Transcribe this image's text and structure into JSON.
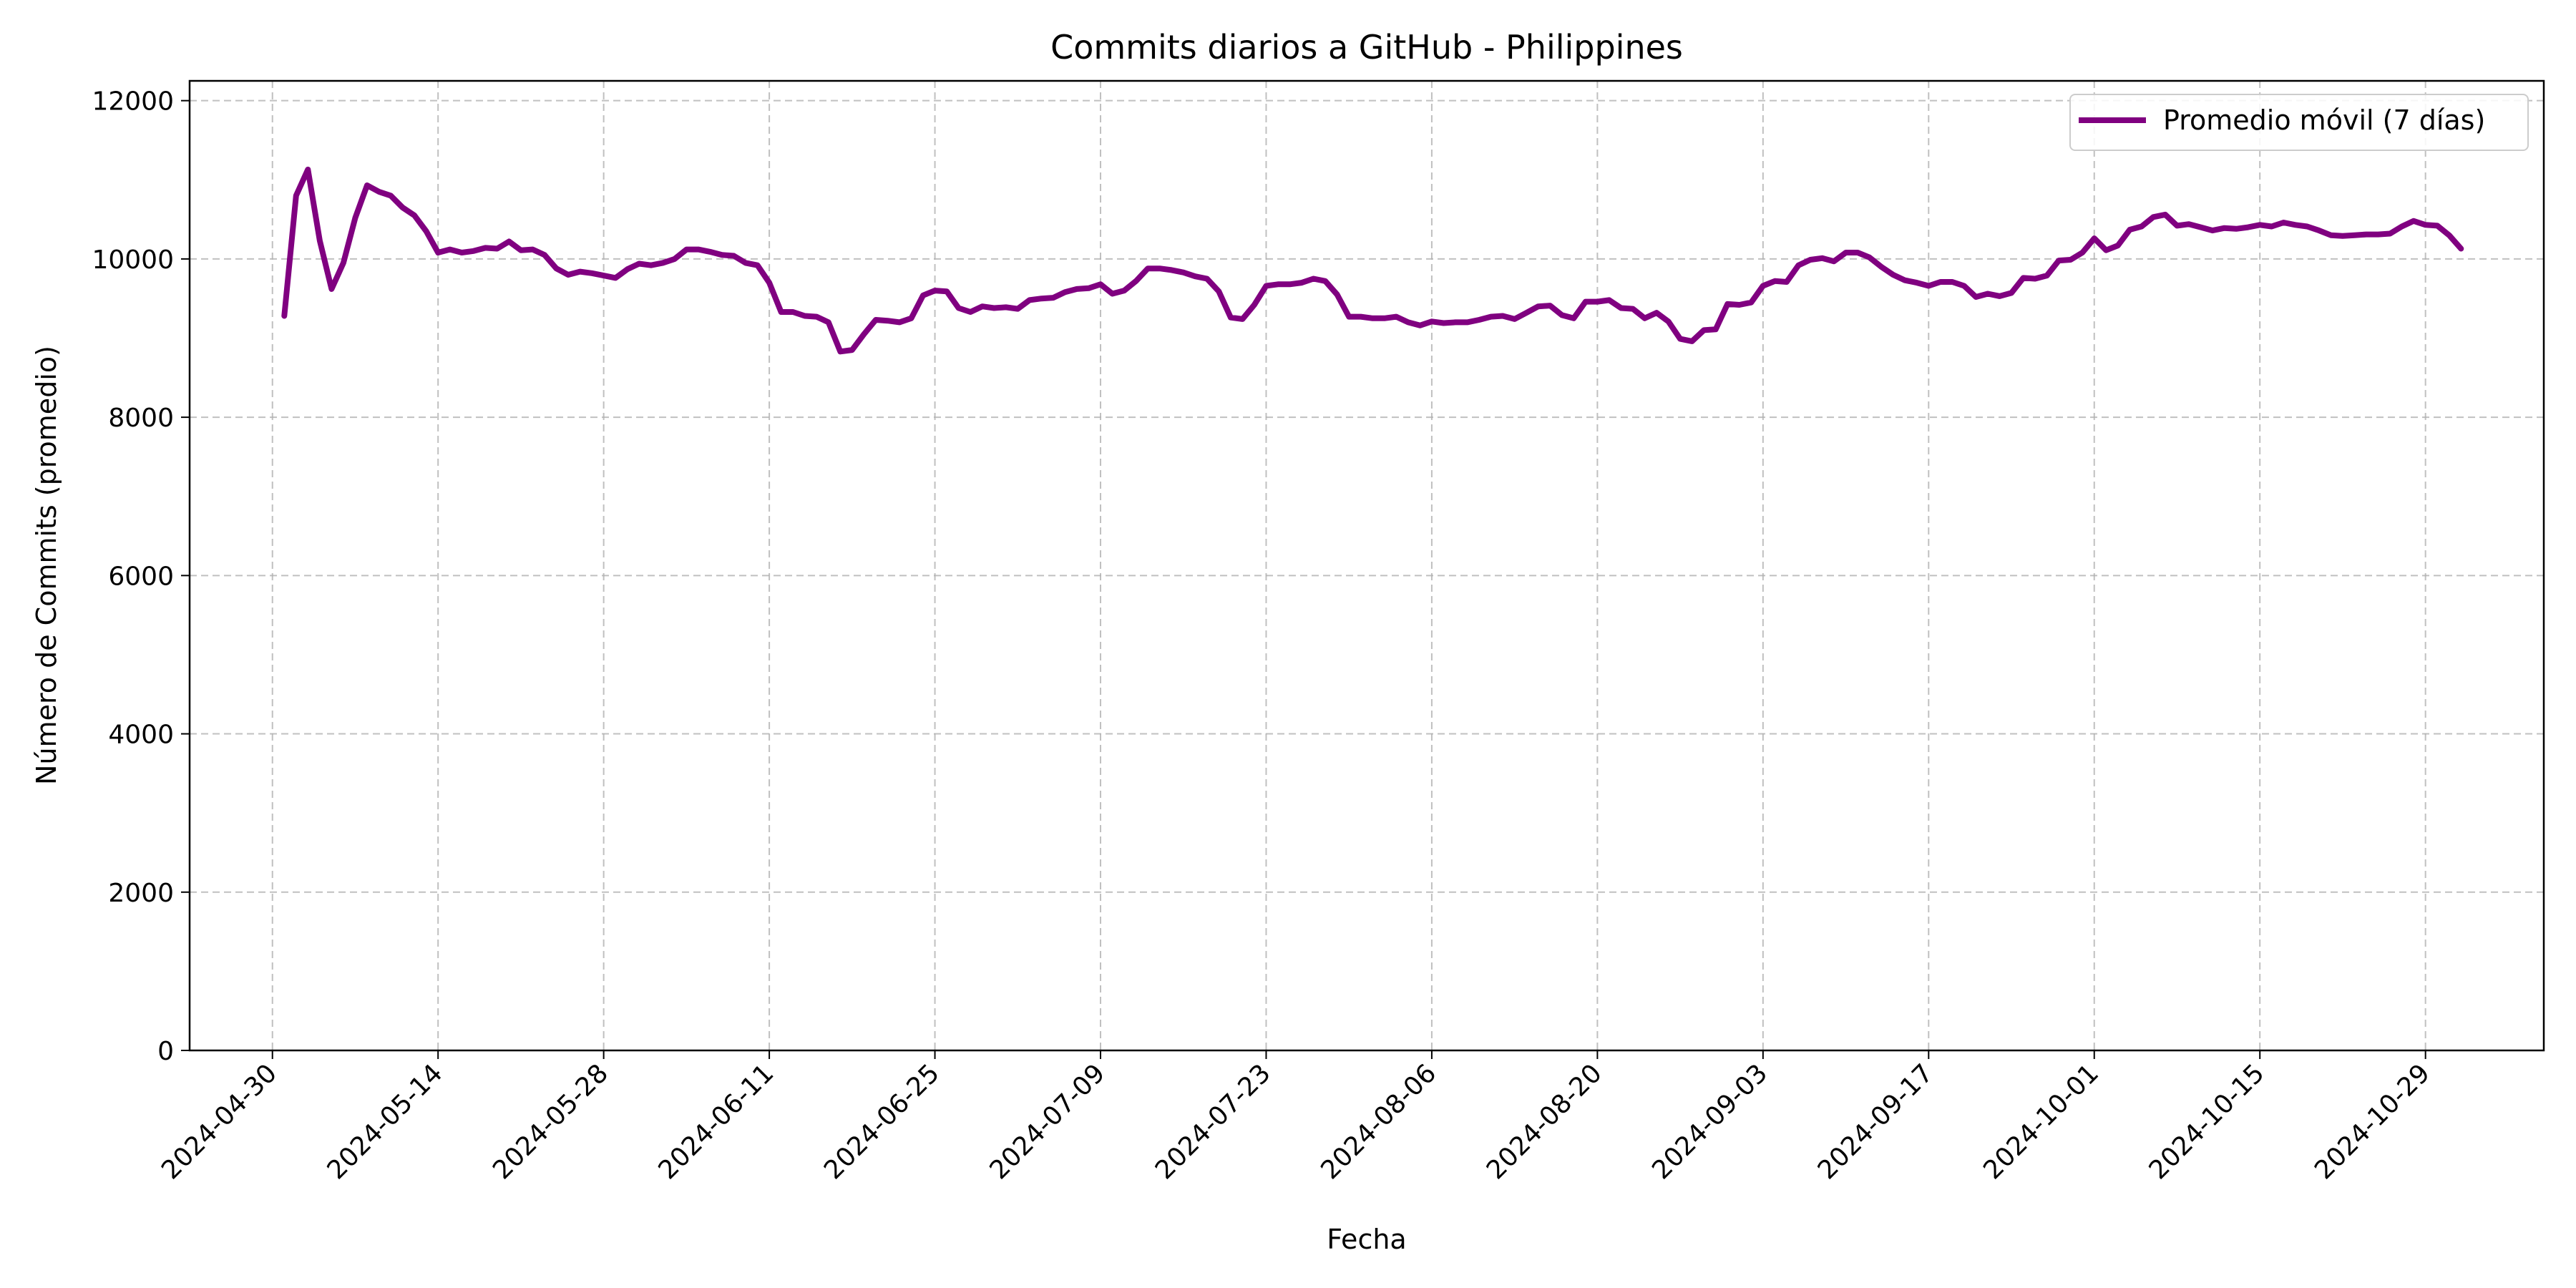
{
  "chart_data": {
    "type": "line",
    "title": "Commits diarios a GitHub - Philippines",
    "xlabel": "Fecha",
    "ylabel": "Número de Commits (promedio)",
    "xlim": [
      "2024-04-23",
      "2024-11-08"
    ],
    "ylim": [
      0,
      12250
    ],
    "grid": true,
    "legend_position": "top-right",
    "x_ticks": [
      "2024-04-30",
      "2024-05-14",
      "2024-05-28",
      "2024-06-11",
      "2024-06-25",
      "2024-07-09",
      "2024-07-23",
      "2024-08-06",
      "2024-08-20",
      "2024-09-03",
      "2024-09-17",
      "2024-10-01",
      "2024-10-15",
      "2024-10-29"
    ],
    "y_ticks": [
      0,
      2000,
      4000,
      6000,
      8000,
      10000,
      12000
    ],
    "series": [
      {
        "name": "Promedio móvil (7 días)",
        "color": "#800080",
        "x": [
          "2024-05-01",
          "2024-05-02",
          "2024-05-03",
          "2024-05-04",
          "2024-05-05",
          "2024-05-06",
          "2024-05-07",
          "2024-05-08",
          "2024-05-09",
          "2024-05-10",
          "2024-05-11",
          "2024-05-12",
          "2024-05-13",
          "2024-05-14",
          "2024-05-15",
          "2024-05-16",
          "2024-05-17",
          "2024-05-18",
          "2024-05-19",
          "2024-05-20",
          "2024-05-21",
          "2024-05-22",
          "2024-05-23",
          "2024-05-24",
          "2024-05-25",
          "2024-05-26",
          "2024-05-27",
          "2024-05-28",
          "2024-05-29",
          "2024-05-30",
          "2024-05-31",
          "2024-06-01",
          "2024-06-02",
          "2024-06-03",
          "2024-06-04",
          "2024-06-05",
          "2024-06-06",
          "2024-06-07",
          "2024-06-08",
          "2024-06-09",
          "2024-06-10",
          "2024-06-11",
          "2024-06-12",
          "2024-06-13",
          "2024-06-14",
          "2024-06-15",
          "2024-06-16",
          "2024-06-17",
          "2024-06-18",
          "2024-06-19",
          "2024-06-20",
          "2024-06-21",
          "2024-06-22",
          "2024-06-23",
          "2024-06-24",
          "2024-06-25",
          "2024-06-26",
          "2024-06-27",
          "2024-06-28",
          "2024-06-29",
          "2024-06-30",
          "2024-07-01",
          "2024-07-02",
          "2024-07-03",
          "2024-07-04",
          "2024-07-05",
          "2024-07-06",
          "2024-07-07",
          "2024-07-08",
          "2024-07-09",
          "2024-07-10",
          "2024-07-11",
          "2024-07-12",
          "2024-07-13",
          "2024-07-14",
          "2024-07-15",
          "2024-07-16",
          "2024-07-17",
          "2024-07-18",
          "2024-07-19",
          "2024-07-20",
          "2024-07-21",
          "2024-07-22",
          "2024-07-23",
          "2024-07-24",
          "2024-07-25",
          "2024-07-26",
          "2024-07-27",
          "2024-07-28",
          "2024-07-29",
          "2024-07-30",
          "2024-07-31",
          "2024-08-01",
          "2024-08-02",
          "2024-08-03",
          "2024-08-04",
          "2024-08-05",
          "2024-08-06",
          "2024-08-07",
          "2024-08-08",
          "2024-08-09",
          "2024-08-10",
          "2024-08-11",
          "2024-08-12",
          "2024-08-13",
          "2024-08-14",
          "2024-08-15",
          "2024-08-16",
          "2024-08-17",
          "2024-08-18",
          "2024-08-19",
          "2024-08-20",
          "2024-08-21",
          "2024-08-22",
          "2024-08-23",
          "2024-08-24",
          "2024-08-25",
          "2024-08-26",
          "2024-08-27",
          "2024-08-28",
          "2024-08-29",
          "2024-08-30",
          "2024-08-31",
          "2024-09-01",
          "2024-09-02",
          "2024-09-03",
          "2024-09-04",
          "2024-09-05",
          "2024-09-06",
          "2024-09-07",
          "2024-09-08",
          "2024-09-09",
          "2024-09-10",
          "2024-09-11",
          "2024-09-12",
          "2024-09-13",
          "2024-09-14",
          "2024-09-15",
          "2024-09-16",
          "2024-09-17",
          "2024-09-18",
          "2024-09-19",
          "2024-09-20",
          "2024-09-21",
          "2024-09-22",
          "2024-09-23",
          "2024-09-24",
          "2024-09-25",
          "2024-09-26",
          "2024-09-27",
          "2024-09-28",
          "2024-09-29",
          "2024-09-30",
          "2024-10-01",
          "2024-10-02",
          "2024-10-03",
          "2024-10-04",
          "2024-10-05",
          "2024-10-06",
          "2024-10-07",
          "2024-10-08",
          "2024-10-09",
          "2024-10-10",
          "2024-10-11",
          "2024-10-12",
          "2024-10-13",
          "2024-10-14",
          "2024-10-15",
          "2024-10-16",
          "2024-10-17",
          "2024-10-18",
          "2024-10-19",
          "2024-10-20",
          "2024-10-21",
          "2024-10-22",
          "2024-10-23",
          "2024-10-24",
          "2024-10-25",
          "2024-10-26",
          "2024-10-27",
          "2024-10-28",
          "2024-10-29",
          "2024-10-30",
          "2024-10-31",
          "2024-11-01"
        ],
        "y": [
          9280,
          10800,
          11130,
          10230,
          9620,
          9950,
          10520,
          10930,
          10850,
          10800,
          10650,
          10550,
          10350,
          10080,
          10120,
          10080,
          10100,
          10140,
          10130,
          10220,
          10110,
          10120,
          10050,
          9880,
          9800,
          9840,
          9820,
          9790,
          9760,
          9870,
          9940,
          9920,
          9950,
          10000,
          10120,
          10120,
          10090,
          10050,
          10040,
          9950,
          9920,
          9700,
          9330,
          9330,
          9280,
          9270,
          9200,
          8830,
          8850,
          9050,
          9230,
          9220,
          9200,
          9250,
          9540,
          9600,
          9590,
          9380,
          9330,
          9400,
          9380,
          9390,
          9370,
          9480,
          9500,
          9510,
          9580,
          9620,
          9630,
          9680,
          9560,
          9600,
          9720,
          9880,
          9880,
          9860,
          9830,
          9780,
          9750,
          9590,
          9260,
          9240,
          9420,
          9660,
          9680,
          9680,
          9700,
          9750,
          9720,
          9550,
          9270,
          9270,
          9250,
          9250,
          9270,
          9200,
          9160,
          9210,
          9190,
          9200,
          9200,
          9230,
          9270,
          9280,
          9240,
          9320,
          9400,
          9410,
          9290,
          9250,
          9460,
          9460,
          9480,
          9380,
          9370,
          9250,
          9320,
          9210,
          8990,
          8960,
          9100,
          9110,
          9430,
          9420,
          9450,
          9660,
          9720,
          9710,
          9920,
          9990,
          10010,
          9970,
          10080,
          10080,
          10020,
          9900,
          9800,
          9730,
          9700,
          9660,
          9710,
          9710,
          9660,
          9520,
          9560,
          9530,
          9570,
          9760,
          9750,
          9790,
          9980,
          9990,
          10080,
          10260,
          10110,
          10170,
          10370,
          10410,
          10530,
          10560,
          10420,
          10440,
          10400,
          10360,
          10390,
          10380,
          10400,
          10430,
          10410,
          10460,
          10430,
          10410,
          10360,
          10300,
          10290,
          10300,
          10310,
          10310,
          10320,
          10410,
          10480,
          10430,
          10420,
          10300,
          10130
        ]
      }
    ]
  }
}
